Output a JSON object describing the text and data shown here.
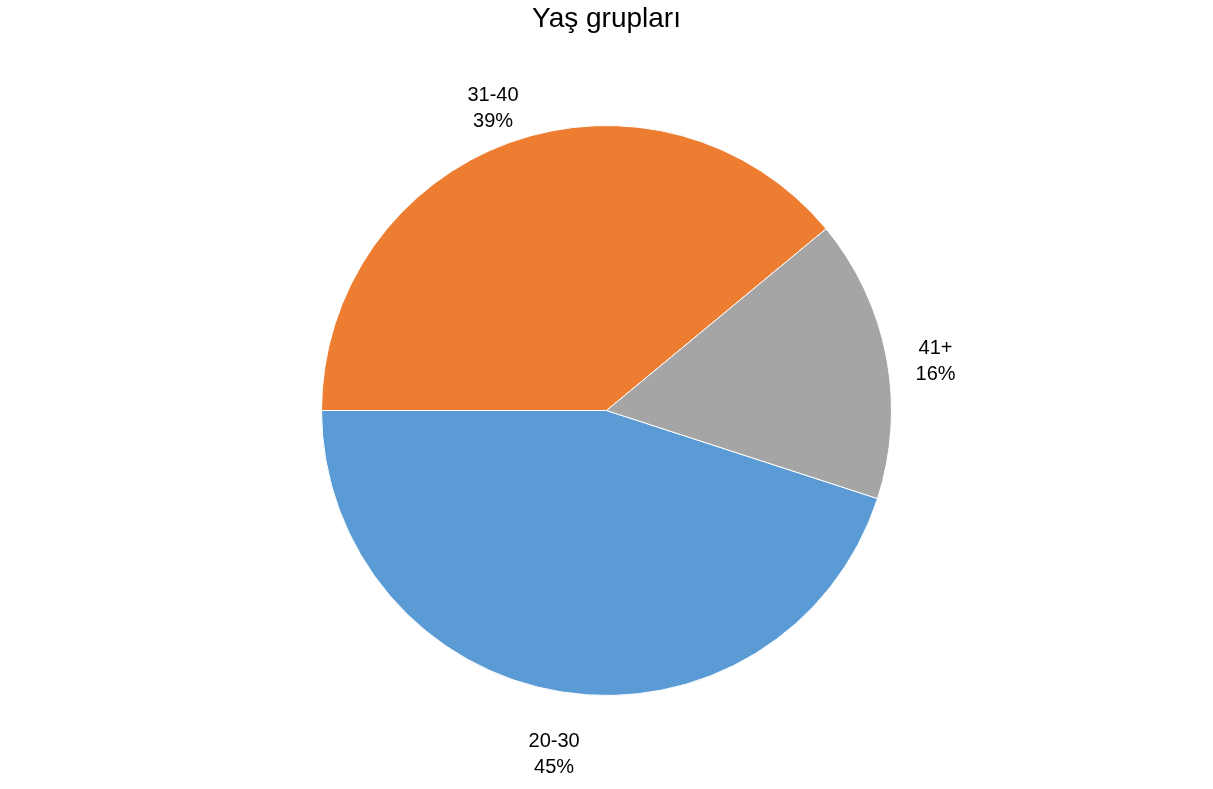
{
  "chart_data": {
    "type": "pie",
    "title": "Yaş grupları",
    "categories": [
      "20-30",
      "31-40",
      "41+"
    ],
    "values": [
      45,
      39,
      16
    ],
    "value_labels": [
      "45%",
      "39%",
      "16%"
    ],
    "colors": [
      "#5b9bd5",
      "#ed7d31",
      "#a5a5a5"
    ],
    "legend": false
  }
}
